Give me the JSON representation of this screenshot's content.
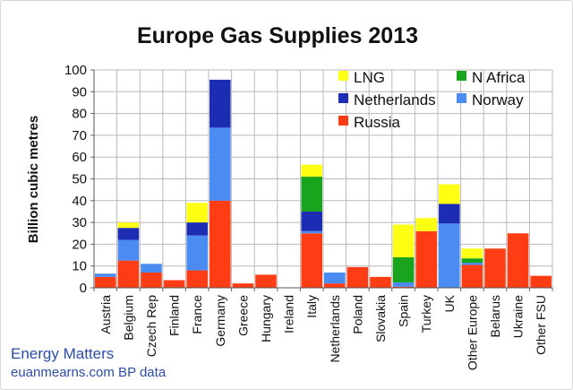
{
  "chart_data": {
    "type": "bar",
    "stacked": true,
    "title": "Europe Gas Supplies 2013",
    "xlabel": "",
    "ylabel": "Billion cubic metres",
    "ylim": [
      0,
      100
    ],
    "yticks": [
      0,
      10,
      20,
      30,
      40,
      50,
      60,
      70,
      80,
      90,
      100
    ],
    "grid": true,
    "legend_position": "top-right",
    "categories": [
      "Austria",
      "Belgium",
      "Czech Rep",
      "Finland",
      "France",
      "Germany",
      "Greece",
      "Hungary",
      "Ireland",
      "Italy",
      "Netherlands",
      "Poland",
      "Slovakia",
      "Spain",
      "Turkey",
      "UK",
      "Other Europe",
      "Belarus",
      "Ukraine",
      "Other FSU"
    ],
    "series": [
      {
        "name": "Russia",
        "color": "#ff3d14",
        "values": [
          5,
          12.5,
          7,
          3.5,
          8,
          40,
          2,
          6,
          0,
          25,
          2,
          9.5,
          5,
          0.5,
          26,
          0,
          10.5,
          18,
          25,
          5.5
        ]
      },
      {
        "name": "Norway",
        "color": "#4a8cf2",
        "values": [
          1.5,
          9.5,
          4,
          0,
          16,
          33.5,
          0,
          0,
          0,
          1,
          5,
          0,
          0,
          2,
          0,
          29.5,
          1,
          0,
          0,
          0
        ]
      },
      {
        "name": "Netherlands",
        "color": "#1c2db4",
        "values": [
          0,
          5.5,
          0,
          0,
          6,
          22,
          0,
          0,
          0,
          9,
          0,
          0,
          0,
          0,
          0,
          9,
          0,
          0,
          0,
          0
        ]
      },
      {
        "name": "N Africa",
        "color": "#18a41c",
        "values": [
          0,
          0,
          0,
          0,
          0,
          0,
          0,
          0,
          0,
          16,
          0,
          0,
          0,
          11.5,
          0,
          0,
          2,
          0,
          0,
          0
        ]
      },
      {
        "name": "LNG",
        "color": "#ffff14",
        "values": [
          0,
          2.5,
          0,
          0,
          9,
          0,
          0,
          0,
          0,
          5.5,
          0,
          0,
          0,
          15,
          6,
          9,
          4.5,
          0,
          0,
          0
        ]
      }
    ]
  },
  "legend_order": [
    "LNG",
    "N Africa",
    "Netherlands",
    "Norway",
    "Russia"
  ],
  "footer": {
    "line1": "Energy Matters",
    "line2": "euanmearns.com  BP data"
  }
}
